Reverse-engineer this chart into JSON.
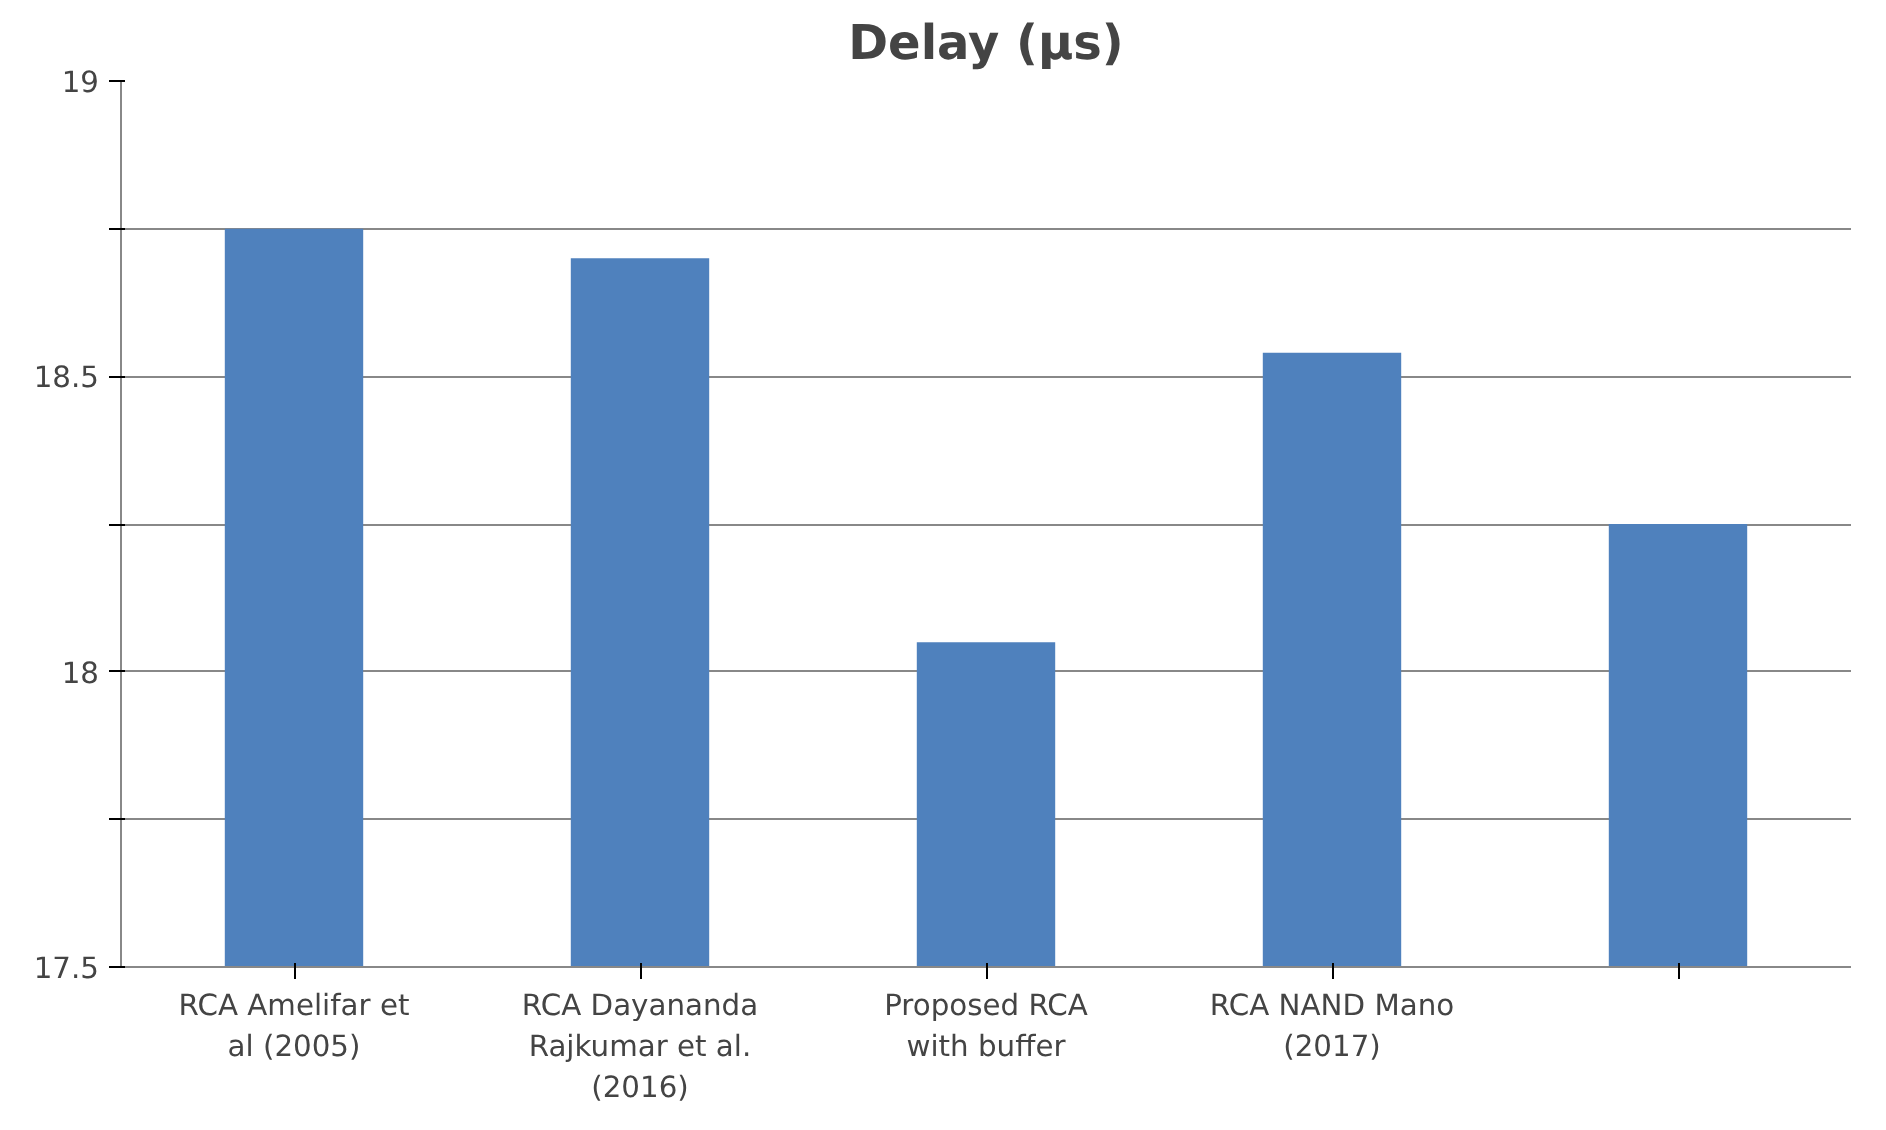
{
  "chart_data": {
    "type": "bar",
    "title": "Delay (µs)",
    "categories": [
      "RCA Amelifar et al (2005)",
      "RCA Dayananda Rajkumar et al. (2016)",
      "Proposed RCA with buffer",
      "RCA NAND Mano (2017)",
      null
    ],
    "values": [
      18.75,
      18.7,
      18.05,
      18.54,
      18.25
    ],
    "color": "#4f81bd",
    "ylim": [
      17.5,
      19
    ],
    "yticks": [
      17.5,
      {
        "value": 17.75,
        "label": null
      },
      18,
      {
        "value": 18.25,
        "label": null
      },
      18.5,
      {
        "value": 18.75,
        "label": null
      },
      19
    ],
    "grid": "y"
  }
}
